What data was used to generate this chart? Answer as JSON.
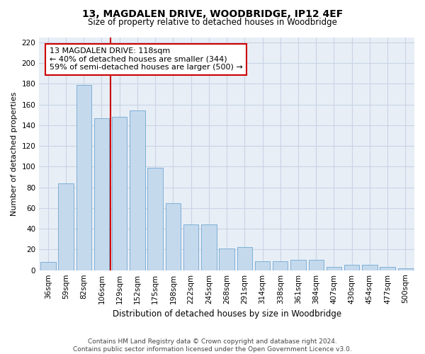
{
  "title_line1": "13, MAGDALEN DRIVE, WOODBRIDGE, IP12 4EF",
  "title_line2": "Size of property relative to detached houses in Woodbridge",
  "xlabel": "Distribution of detached houses by size in Woodbridge",
  "ylabel": "Number of detached properties",
  "categories": [
    "36sqm",
    "59sqm",
    "82sqm",
    "106sqm",
    "129sqm",
    "152sqm",
    "175sqm",
    "198sqm",
    "222sqm",
    "245sqm",
    "268sqm",
    "291sqm",
    "314sqm",
    "338sqm",
    "361sqm",
    "384sqm",
    "407sqm",
    "430sqm",
    "454sqm",
    "477sqm",
    "500sqm"
  ],
  "values": [
    8,
    84,
    179,
    147,
    148,
    154,
    99,
    65,
    44,
    44,
    21,
    22,
    9,
    9,
    10,
    10,
    3,
    5,
    5,
    3,
    2
  ],
  "bar_color": "#c5d9ed",
  "bar_edge_color": "#6fa8d0",
  "grid_color": "#c8d4e4",
  "background_color": "#e8eef6",
  "vline_color": "#cc0000",
  "annotation_line1": "13 MAGDALEN DRIVE: 118sqm",
  "annotation_line2": "← 40% of detached houses are smaller (344)",
  "annotation_line3": "59% of semi-detached houses are larger (500) →",
  "annotation_box_color": "#ffffff",
  "annotation_box_edge": "#cc0000",
  "ylim": [
    0,
    225
  ],
  "yticks": [
    0,
    20,
    40,
    60,
    80,
    100,
    120,
    140,
    160,
    180,
    200,
    220
  ],
  "footer_line1": "Contains HM Land Registry data © Crown copyright and database right 2024.",
  "footer_line2": "Contains public sector information licensed under the Open Government Licence v3.0.",
  "title_fontsize": 10,
  "subtitle_fontsize": 8.5,
  "ylabel_fontsize": 8,
  "xlabel_fontsize": 8.5,
  "tick_fontsize": 7.5,
  "footer_fontsize": 6.5,
  "annot_fontsize": 8
}
